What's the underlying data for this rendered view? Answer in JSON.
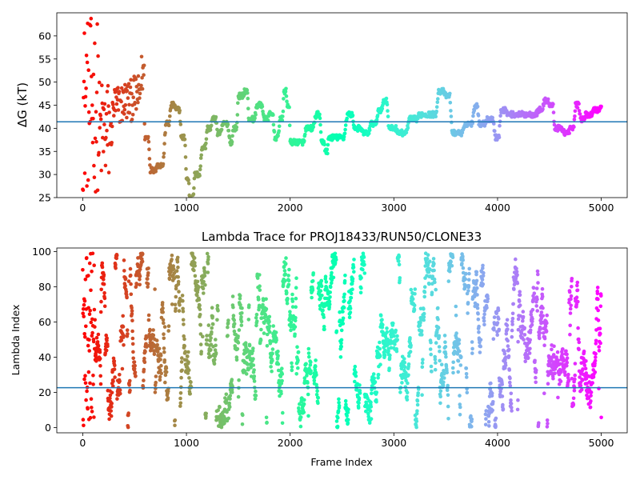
{
  "chart_data": [
    {
      "type": "scatter",
      "title": "",
      "xlabel": "",
      "ylabel": "ΔG (kT)",
      "xlim": [
        -250,
        5250
      ],
      "ylim": [
        25,
        65
      ],
      "xticks": [
        0,
        1000,
        2000,
        3000,
        4000,
        5000
      ],
      "yticks": [
        25,
        30,
        35,
        40,
        45,
        50,
        55,
        60
      ],
      "hline": 41.4,
      "colormap": "rainbow (color by frame index, red at 0 to violet at 5000)",
      "frame_count": 5000,
      "key_points": [
        {
          "x": 0,
          "y": 46
        },
        {
          "x": 100,
          "y": 48
        },
        {
          "x": 200,
          "y": 38
        },
        {
          "x": 300,
          "y": 45
        },
        {
          "x": 400,
          "y": 46
        },
        {
          "x": 500,
          "y": 47
        },
        {
          "x": 570,
          "y": 52
        },
        {
          "x": 600,
          "y": 38
        },
        {
          "x": 650,
          "y": 31
        },
        {
          "x": 720,
          "y": 32
        },
        {
          "x": 800,
          "y": 41
        },
        {
          "x": 850,
          "y": 45
        },
        {
          "x": 900,
          "y": 44
        },
        {
          "x": 950,
          "y": 38
        },
        {
          "x": 1000,
          "y": 29
        },
        {
          "x": 1030,
          "y": 25
        },
        {
          "x": 1080,
          "y": 30
        },
        {
          "x": 1150,
          "y": 36
        },
        {
          "x": 1200,
          "y": 40
        },
        {
          "x": 1250,
          "y": 42
        },
        {
          "x": 1300,
          "y": 39
        },
        {
          "x": 1350,
          "y": 41
        },
        {
          "x": 1420,
          "y": 37
        },
        {
          "x": 1450,
          "y": 40
        },
        {
          "x": 1500,
          "y": 47
        },
        {
          "x": 1560,
          "y": 48
        },
        {
          "x": 1600,
          "y": 42
        },
        {
          "x": 1680,
          "y": 45
        },
        {
          "x": 1750,
          "y": 42
        },
        {
          "x": 1800,
          "y": 43
        },
        {
          "x": 1850,
          "y": 38
        },
        {
          "x": 1900,
          "y": 42
        },
        {
          "x": 1940,
          "y": 48
        },
        {
          "x": 1970,
          "y": 45
        },
        {
          "x": 2000,
          "y": 37
        },
        {
          "x": 2100,
          "y": 37
        },
        {
          "x": 2150,
          "y": 40
        },
        {
          "x": 2250,
          "y": 43
        },
        {
          "x": 2300,
          "y": 37
        },
        {
          "x": 2340,
          "y": 35
        },
        {
          "x": 2370,
          "y": 38
        },
        {
          "x": 2450,
          "y": 38
        },
        {
          "x": 2550,
          "y": 43
        },
        {
          "x": 2620,
          "y": 40
        },
        {
          "x": 2700,
          "y": 39
        },
        {
          "x": 2780,
          "y": 41
        },
        {
          "x": 2850,
          "y": 44
        },
        {
          "x": 2900,
          "y": 46
        },
        {
          "x": 2950,
          "y": 40
        },
        {
          "x": 3050,
          "y": 39
        },
        {
          "x": 3150,
          "y": 42
        },
        {
          "x": 3250,
          "y": 43
        },
        {
          "x": 3350,
          "y": 43
        },
        {
          "x": 3430,
          "y": 48
        },
        {
          "x": 3500,
          "y": 47
        },
        {
          "x": 3560,
          "y": 39
        },
        {
          "x": 3700,
          "y": 41
        },
        {
          "x": 3780,
          "y": 45
        },
        {
          "x": 3820,
          "y": 41
        },
        {
          "x": 3900,
          "y": 42
        },
        {
          "x": 3980,
          "y": 38
        },
        {
          "x": 4030,
          "y": 44
        },
        {
          "x": 4100,
          "y": 43
        },
        {
          "x": 4300,
          "y": 43
        },
        {
          "x": 4400,
          "y": 44
        },
        {
          "x": 4450,
          "y": 46
        },
        {
          "x": 4500,
          "y": 45
        },
        {
          "x": 4550,
          "y": 40
        },
        {
          "x": 4650,
          "y": 39
        },
        {
          "x": 4700,
          "y": 40
        },
        {
          "x": 4750,
          "y": 45
        },
        {
          "x": 4800,
          "y": 42
        },
        {
          "x": 4850,
          "y": 43
        },
        {
          "x": 4930,
          "y": 44
        },
        {
          "x": 5000,
          "y": 45
        }
      ]
    },
    {
      "type": "scatter",
      "title": "Lambda Trace for PROJ18433/RUN50/CLONE33",
      "xlabel": "Frame Index",
      "ylabel": "Lambda Index",
      "xlim": [
        -250,
        5250
      ],
      "ylim": [
        -3,
        102
      ],
      "xticks": [
        0,
        1000,
        2000,
        3000,
        4000,
        5000
      ],
      "xtick_labels": [
        "0",
        "1000",
        "2000",
        "3000",
        "4000",
        "5000"
      ],
      "yticks": [
        0,
        20,
        40,
        60,
        80,
        100
      ],
      "hline": 22.6,
      "colormap": "rainbow (color by frame index, red at 0 to violet at 5000)",
      "frame_count": 5000,
      "value_range": [
        0,
        99
      ]
    }
  ]
}
